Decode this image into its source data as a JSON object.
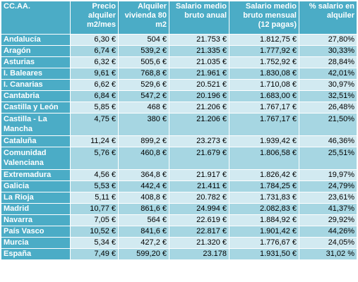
{
  "headers": [
    "CC.AA.",
    "Precio alquiler m2/mes",
    "Alquiler vivienda 80 m2",
    "Salario medio bruto anual",
    "Salario medio bruto mensual (12 pagas)",
    "% salario en alquiler"
  ],
  "rows": [
    {
      "region": "Andalucía",
      "price_m2": "6,30 €",
      "rent_80m2": "504 €",
      "salary_annual": "21.753 €",
      "salary_monthly": "1.812,75 €",
      "pct_rent": "27,80%"
    },
    {
      "region": "Aragón",
      "price_m2": "6,74 €",
      "rent_80m2": "539,2 €",
      "salary_annual": "21.335 €",
      "salary_monthly": "1.777,92 €",
      "pct_rent": "30,33%"
    },
    {
      "region": "Asturias",
      "price_m2": "6,32 €",
      "rent_80m2": "505,6 €",
      "salary_annual": "21.035 €",
      "salary_monthly": "1.752,92 €",
      "pct_rent": "28,84%"
    },
    {
      "region": "I. Baleares",
      "price_m2": "9,61 €",
      "rent_80m2": "768,8 €",
      "salary_annual": "21.961 €",
      "salary_monthly": "1.830,08 €",
      "pct_rent": "42,01%"
    },
    {
      "region": "I. Canarias",
      "price_m2": "6,62 €",
      "rent_80m2": "529,6 €",
      "salary_annual": "20.521 €",
      "salary_monthly": "1.710,08 €",
      "pct_rent": "30,97%"
    },
    {
      "region": "Cantabria",
      "price_m2": "6,84 €",
      "rent_80m2": "547,2 €",
      "salary_annual": "20.196 €",
      "salary_monthly": "1.683,00 €",
      "pct_rent": "32,51%"
    },
    {
      "region": "Castilla y León",
      "price_m2": "5,85 €",
      "rent_80m2": "468 €",
      "salary_annual": "21.206 €",
      "salary_monthly": "1.767,17 €",
      "pct_rent": "26,48%"
    },
    {
      "region": "Castilla - La Mancha",
      "price_m2": "4,75 €",
      "rent_80m2": "380 €",
      "salary_annual": "21.206 €",
      "salary_monthly": "1.767,17 €",
      "pct_rent": "21,50%"
    },
    {
      "region": "Cataluña",
      "price_m2": "11,24 €",
      "rent_80m2": "899,2 €",
      "salary_annual": "23.273 €",
      "salary_monthly": "1.939,42 €",
      "pct_rent": "46,36%"
    },
    {
      "region": "Comunidad Valenciana",
      "price_m2": "5,76 €",
      "rent_80m2": "460,8 €",
      "salary_annual": "21.679 €",
      "salary_monthly": "1.806,58 €",
      "pct_rent": "25,51%"
    },
    {
      "region": "Extremadura",
      "price_m2": "4,56 €",
      "rent_80m2": "364,8 €",
      "salary_annual": "21.917 €",
      "salary_monthly": "1.826,42 €",
      "pct_rent": "19,97%"
    },
    {
      "region": "Galicia",
      "price_m2": "5,53 €",
      "rent_80m2": "442,4 €",
      "salary_annual": "21.411 €",
      "salary_monthly": "1.784,25 €",
      "pct_rent": "24,79%"
    },
    {
      "region": "La Rioja",
      "price_m2": "5,11 €",
      "rent_80m2": "408,8 €",
      "salary_annual": "20.782 €",
      "salary_monthly": "1.731,83 €",
      "pct_rent": "23,61%"
    },
    {
      "region": "Madrid",
      "price_m2": "10,77 €",
      "rent_80m2": "861,6 €",
      "salary_annual": "24.994 €",
      "salary_monthly": "2.082,83 €",
      "pct_rent": "41,37%"
    },
    {
      "region": "Navarra",
      "price_m2": "7,05 €",
      "rent_80m2": "564 €",
      "salary_annual": "22.619 €",
      "salary_monthly": "1.884,92 €",
      "pct_rent": "29,92%"
    },
    {
      "region": "País Vasco",
      "price_m2": "10,52 €",
      "rent_80m2": "841,6 €",
      "salary_annual": "22.817 €",
      "salary_monthly": "1.901,42 €",
      "pct_rent": "44,26%"
    },
    {
      "region": "Murcia",
      "price_m2": "5,34 €",
      "rent_80m2": "427,2 €",
      "salary_annual": "21.320 €",
      "salary_monthly": "1.776,67 €",
      "pct_rent": "24,05%"
    },
    {
      "region": "España",
      "price_m2": "7,49 €",
      "rent_80m2": "599,20 €",
      "salary_annual": "23.178",
      "salary_monthly": "1.931,50 €",
      "pct_rent": "31,02 %"
    }
  ],
  "colors": {
    "header_bg": "#4bacc6",
    "row_light": "#d2eaf1",
    "row_dark": "#a6d6e2",
    "header_text": "#ffffff"
  }
}
